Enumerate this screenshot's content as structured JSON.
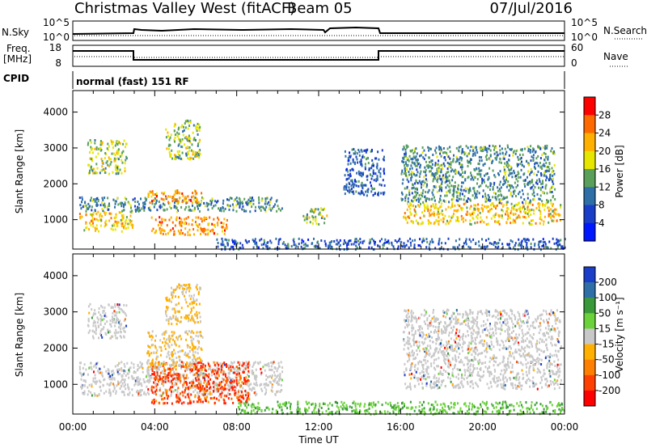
{
  "header": {
    "station": "Christmas Valley West (fitACF)",
    "beam": "Beam 05",
    "date": "07/Jul/2016"
  },
  "top_panels": {
    "nsky_label": "N.Sky",
    "nsky_ticks": [
      "10^5",
      "10^0"
    ],
    "nsearch_label": "N.Search",
    "nsearch_ticks": [
      "10^5",
      "10^0"
    ],
    "freq_label_line1": "Freq.",
    "freq_label_line2": "[MHz]",
    "freq_ticks": [
      "18",
      "8"
    ],
    "nave_label": "Nave",
    "nave_ticks": [
      "60",
      "0"
    ],
    "cpid_label": "CPID",
    "cpid_text": "normal (fast) 151 RF"
  },
  "colorbars": {
    "power": {
      "label": "Power [dB]",
      "ticks": [
        "28",
        "24",
        "20",
        "16",
        "12",
        "8",
        "4"
      ],
      "colors": [
        "#ff0000",
        "#ff6a00",
        "#ffb000",
        "#e6e600",
        "#5aa05a",
        "#2e6fa8",
        "#1b3ec8",
        "#0018ff"
      ]
    },
    "velocity": {
      "label": "Velocity [m s⁻¹]",
      "ticks": [
        "200",
        "100",
        "50",
        "15",
        "-15",
        "-50",
        "-100",
        "-200"
      ],
      "colors": [
        "#1b3ec8",
        "#2e6fa8",
        "#3a9a3a",
        "#6cd23c",
        "#c8c8c8",
        "#ffb000",
        "#ff8000",
        "#ff4000",
        "#ff0000"
      ]
    }
  },
  "chart_data": [
    {
      "type": "heatmap",
      "name": "power",
      "ylabel": "Slant Range [km]",
      "yticks": [
        "4000",
        "3000",
        "2000",
        "1000"
      ],
      "ylim": [
        180,
        4600
      ],
      "xlim": [
        0,
        24
      ],
      "regions": [
        {
          "t0": 0.3,
          "t1": 2.9,
          "r0": 700,
          "r1": 1250,
          "level": 20
        },
        {
          "t0": 0.3,
          "t1": 10.2,
          "r0": 1250,
          "r1": 1650,
          "level": 12
        },
        {
          "t0": 3.8,
          "t1": 7.5,
          "r0": 600,
          "r1": 1100,
          "level": 24
        },
        {
          "t0": 3.6,
          "t1": 6.3,
          "r0": 1500,
          "r1": 1850,
          "level": 24
        },
        {
          "t0": 0.7,
          "t1": 2.6,
          "r0": 2300,
          "r1": 3250,
          "level": 16
        },
        {
          "t0": 4.5,
          "t1": 6.2,
          "r0": 2700,
          "r1": 3800,
          "level": 16
        },
        {
          "t0": 11.2,
          "t1": 12.4,
          "r0": 900,
          "r1": 1350,
          "level": 16
        },
        {
          "t0": 16.1,
          "t1": 23.8,
          "r0": 900,
          "r1": 1500,
          "level": 20
        },
        {
          "t0": 16.0,
          "t1": 23.5,
          "r0": 1500,
          "r1": 3100,
          "level": 12
        },
        {
          "t0": 13.2,
          "t1": 15.2,
          "r0": 1700,
          "r1": 3000,
          "level": 8
        },
        {
          "t0": 7.0,
          "t1": 24.0,
          "r0": 200,
          "r1": 500,
          "level": 8
        }
      ]
    },
    {
      "type": "heatmap",
      "name": "velocity",
      "ylabel": "Slant Range [km]",
      "yticks": [
        "4000",
        "3000",
        "2000",
        "1000"
      ],
      "xlabel": "Time UT",
      "xticks": [
        "00:00",
        "04:00",
        "08:00",
        "12:00",
        "16:00",
        "20:00",
        "00:00"
      ],
      "ylim": [
        180,
        4600
      ],
      "xlim": [
        0,
        24
      ],
      "regions": [
        {
          "t0": 0.3,
          "t1": 10.2,
          "r0": 700,
          "r1": 1650,
          "level": 0
        },
        {
          "t0": 3.8,
          "t1": 8.6,
          "r0": 500,
          "r1": 1650,
          "level": -200
        },
        {
          "t0": 3.6,
          "t1": 6.3,
          "r0": 1500,
          "r1": 2500,
          "level": -50
        },
        {
          "t0": 0.7,
          "t1": 2.6,
          "r0": 2300,
          "r1": 3250,
          "level": 0
        },
        {
          "t0": 4.5,
          "t1": 6.2,
          "r0": 2700,
          "r1": 3800,
          "level": -50
        },
        {
          "t0": 16.1,
          "t1": 23.8,
          "r0": 900,
          "r1": 3100,
          "level": 0
        },
        {
          "t0": 8.0,
          "t1": 24.0,
          "r0": 200,
          "r1": 550,
          "level": 15
        }
      ]
    }
  ]
}
